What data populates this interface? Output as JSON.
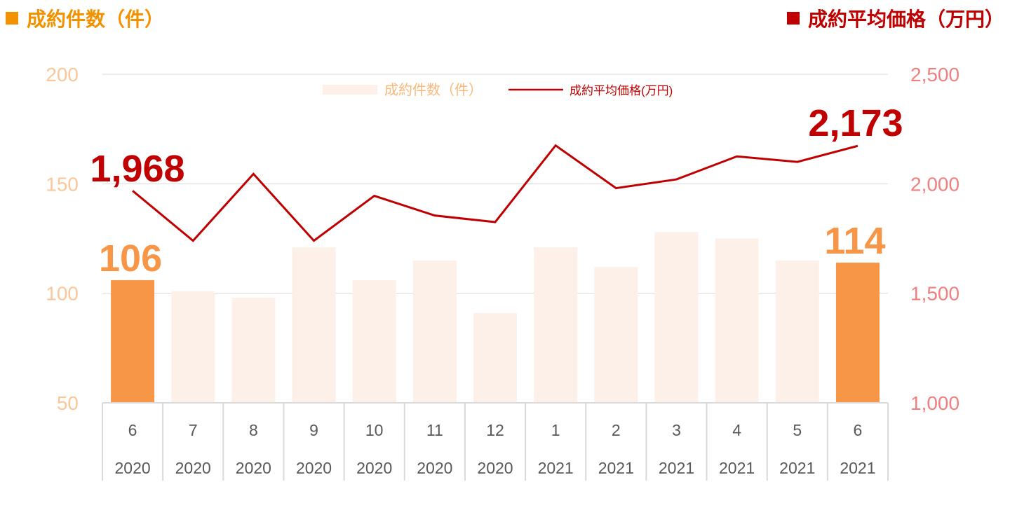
{
  "headers": {
    "left": {
      "label": "成約件数（件）",
      "color": "#f39200"
    },
    "right": {
      "label": "成約平均価格（万円）",
      "color": "#c00000"
    }
  },
  "colors": {
    "bar_normal": "#fcf0e8",
    "bar_highlight": "#f79646",
    "line": "#c00000",
    "left_axis_text": "#f9c79a",
    "right_axis_text": "#f08080",
    "x_axis_text": "#595959",
    "grid": "#d9d9d9"
  },
  "chart_data": {
    "type": "bar",
    "categories": [
      {
        "month": "6",
        "year": "2020"
      },
      {
        "month": "7",
        "year": "2020"
      },
      {
        "month": "8",
        "year": "2020"
      },
      {
        "month": "9",
        "year": "2020"
      },
      {
        "month": "10",
        "year": "2020"
      },
      {
        "month": "11",
        "year": "2020"
      },
      {
        "month": "12",
        "year": "2020"
      },
      {
        "month": "1",
        "year": "2021"
      },
      {
        "month": "2",
        "year": "2021"
      },
      {
        "month": "3",
        "year": "2021"
      },
      {
        "month": "4",
        "year": "2021"
      },
      {
        "month": "5",
        "year": "2021"
      },
      {
        "month": "6",
        "year": "2021"
      }
    ],
    "series": [
      {
        "name": "成約件数（件）",
        "type": "bar",
        "axis": "left",
        "values": [
          106,
          101,
          98,
          121,
          106,
          115,
          91,
          121,
          112,
          128,
          125,
          115,
          114
        ],
        "highlight": [
          true,
          false,
          false,
          false,
          false,
          false,
          false,
          false,
          false,
          false,
          false,
          false,
          true
        ]
      },
      {
        "name": "成約平均価格(万円)",
        "type": "line",
        "axis": "right",
        "values": [
          1968,
          1740,
          2045,
          1740,
          1945,
          1855,
          1825,
          2175,
          1980,
          2020,
          2125,
          2100,
          2173
        ]
      }
    ],
    "left_axis": {
      "min": 50,
      "max": 200,
      "ticks": [
        "50",
        "100",
        "150",
        "200"
      ],
      "tick_values": [
        50,
        100,
        150,
        200
      ]
    },
    "right_axis": {
      "min": 1000,
      "max": 2500,
      "ticks": [
        "1,000",
        "1,500",
        "2,000",
        "2,500"
      ],
      "tick_values": [
        1000,
        1500,
        2000,
        2500
      ]
    },
    "data_labels": {
      "bar_first": "106",
      "bar_last": "114",
      "line_first": "1,968",
      "line_last": "2,173"
    },
    "legend": {
      "placement": "top-center"
    },
    "grid": true
  }
}
